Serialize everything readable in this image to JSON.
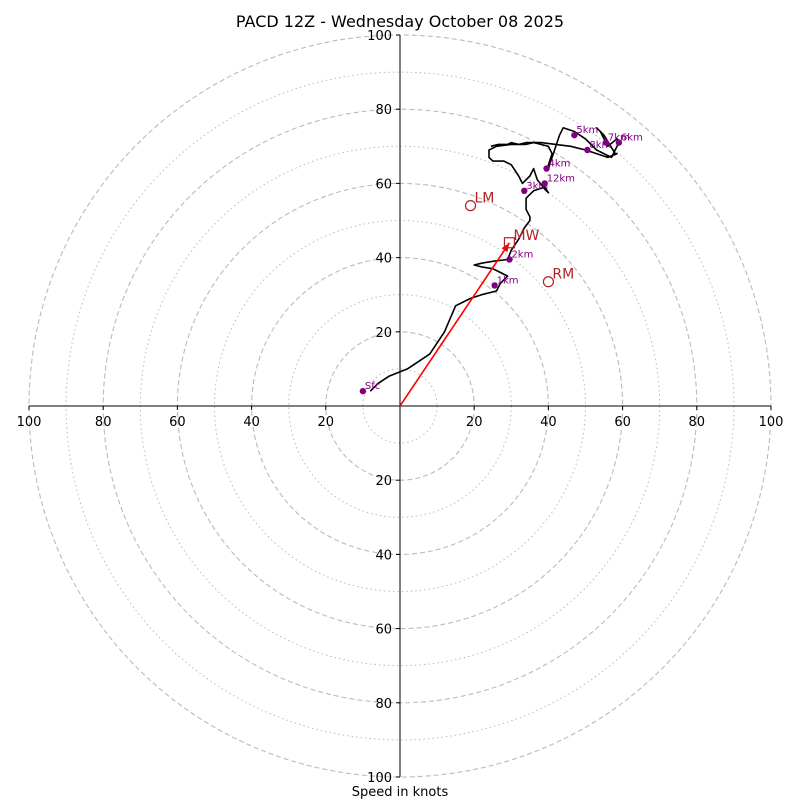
{
  "chart_data": {
    "type": "hodograph",
    "title": "PACD 12Z - Wednesday October 08 2025",
    "xlabel": "Speed in knots",
    "unit": "knots",
    "xlim": [
      -100,
      100
    ],
    "ylim": [
      -100,
      100
    ],
    "x_ticks": [
      -100,
      -80,
      -60,
      -40,
      -20,
      20,
      40,
      60,
      80,
      100
    ],
    "x_tick_labels": [
      "100",
      "80",
      "60",
      "40",
      "20",
      "20",
      "40",
      "60",
      "80",
      "100"
    ],
    "y_ticks": [
      100,
      80,
      60,
      40,
      20,
      -20,
      -40,
      -60,
      -80,
      -100
    ],
    "y_tick_labels": [
      "100",
      "80",
      "60",
      "40",
      "20",
      "20",
      "40",
      "60",
      "80",
      "100"
    ],
    "rings_major": [
      20,
      40,
      60,
      80,
      100
    ],
    "rings_minor": [
      10,
      30,
      50,
      70,
      90
    ],
    "grid": true,
    "line_color": "#000000",
    "point_color": "#800080",
    "motion_color": "#b22222",
    "arrow_color": "#ff0000",
    "grid_color": "#bbbbbb",
    "hodograph_line": [
      [
        -8,
        4
      ],
      [
        -6,
        6
      ],
      [
        -3,
        8
      ],
      [
        2,
        10
      ],
      [
        8,
        14
      ],
      [
        12,
        20
      ],
      [
        15,
        27
      ],
      [
        19,
        29
      ],
      [
        22,
        30
      ],
      [
        26,
        31
      ],
      [
        27,
        33
      ],
      [
        29,
        35
      ],
      [
        27,
        36
      ],
      [
        25,
        37
      ],
      [
        22,
        37.5
      ],
      [
        20,
        38
      ],
      [
        22,
        38.5
      ],
      [
        25,
        39
      ],
      [
        29,
        39.5
      ],
      [
        30,
        42
      ],
      [
        32,
        45
      ],
      [
        33.5,
        48
      ],
      [
        35,
        50
      ],
      [
        35,
        51
      ],
      [
        34,
        53
      ],
      [
        34,
        56
      ],
      [
        36,
        58
      ],
      [
        39,
        59
      ],
      [
        40,
        57.5
      ],
      [
        39,
        58.5
      ],
      [
        37,
        61
      ],
      [
        36,
        64
      ],
      [
        35,
        62
      ],
      [
        33,
        60
      ],
      [
        32,
        62
      ],
      [
        30,
        65
      ],
      [
        28,
        66
      ],
      [
        25,
        66
      ],
      [
        24,
        67
      ],
      [
        24,
        68
      ],
      [
        24,
        69
      ],
      [
        26,
        70
      ],
      [
        30,
        70.5
      ],
      [
        34,
        70.5
      ],
      [
        36,
        71
      ],
      [
        38,
        70.5
      ],
      [
        40,
        70
      ],
      [
        41,
        68
      ],
      [
        40,
        65
      ],
      [
        40,
        64
      ],
      [
        41,
        67
      ],
      [
        42,
        70
      ],
      [
        43,
        73
      ],
      [
        44,
        75
      ],
      [
        47,
        74
      ],
      [
        50,
        72
      ],
      [
        53,
        69
      ],
      [
        56,
        67.5
      ],
      [
        57,
        67
      ],
      [
        59,
        71
      ],
      [
        58.5,
        72
      ],
      [
        56,
        70
      ],
      [
        54,
        74
      ],
      [
        53,
        75
      ],
      [
        55,
        73
      ],
      [
        58,
        68
      ],
      [
        58.5,
        68
      ],
      [
        56,
        67
      ],
      [
        50,
        69
      ],
      [
        46,
        70
      ],
      [
        42,
        70.5
      ],
      [
        38,
        71
      ],
      [
        34,
        71
      ],
      [
        32,
        70.5
      ],
      [
        30,
        71
      ],
      [
        29,
        70.5
      ],
      [
        26.5,
        70.5
      ],
      [
        24.5,
        70
      ]
    ],
    "height_points": [
      {
        "label": "Sfc",
        "x": -10,
        "y": 4
      },
      {
        "label": "1km",
        "x": 25.5,
        "y": 32.5
      },
      {
        "label": "2km",
        "x": 29.5,
        "y": 39.5
      },
      {
        "label": "3km",
        "x": 33.5,
        "y": 58
      },
      {
        "label": "4km",
        "x": 39.5,
        "y": 64
      },
      {
        "label": "5km",
        "x": 47,
        "y": 73
      },
      {
        "label": "6km",
        "x": 59,
        "y": 71
      },
      {
        "label": "7km",
        "x": 55.5,
        "y": 71
      },
      {
        "label": "8km",
        "x": 50.5,
        "y": 69
      },
      {
        "label": "12km",
        "x": 39,
        "y": 60
      }
    ],
    "storm_motions": [
      {
        "label": "LM",
        "x": 19,
        "y": 54,
        "marker": "circle"
      },
      {
        "label": "RM",
        "x": 40,
        "y": 33.5,
        "marker": "circle"
      },
      {
        "label": "MW",
        "x": 29.5,
        "y": 44,
        "marker": "square"
      }
    ],
    "mean_wind_arrow": {
      "x0": 0,
      "y0": 0,
      "x1": 29.5,
      "y1": 44
    }
  }
}
